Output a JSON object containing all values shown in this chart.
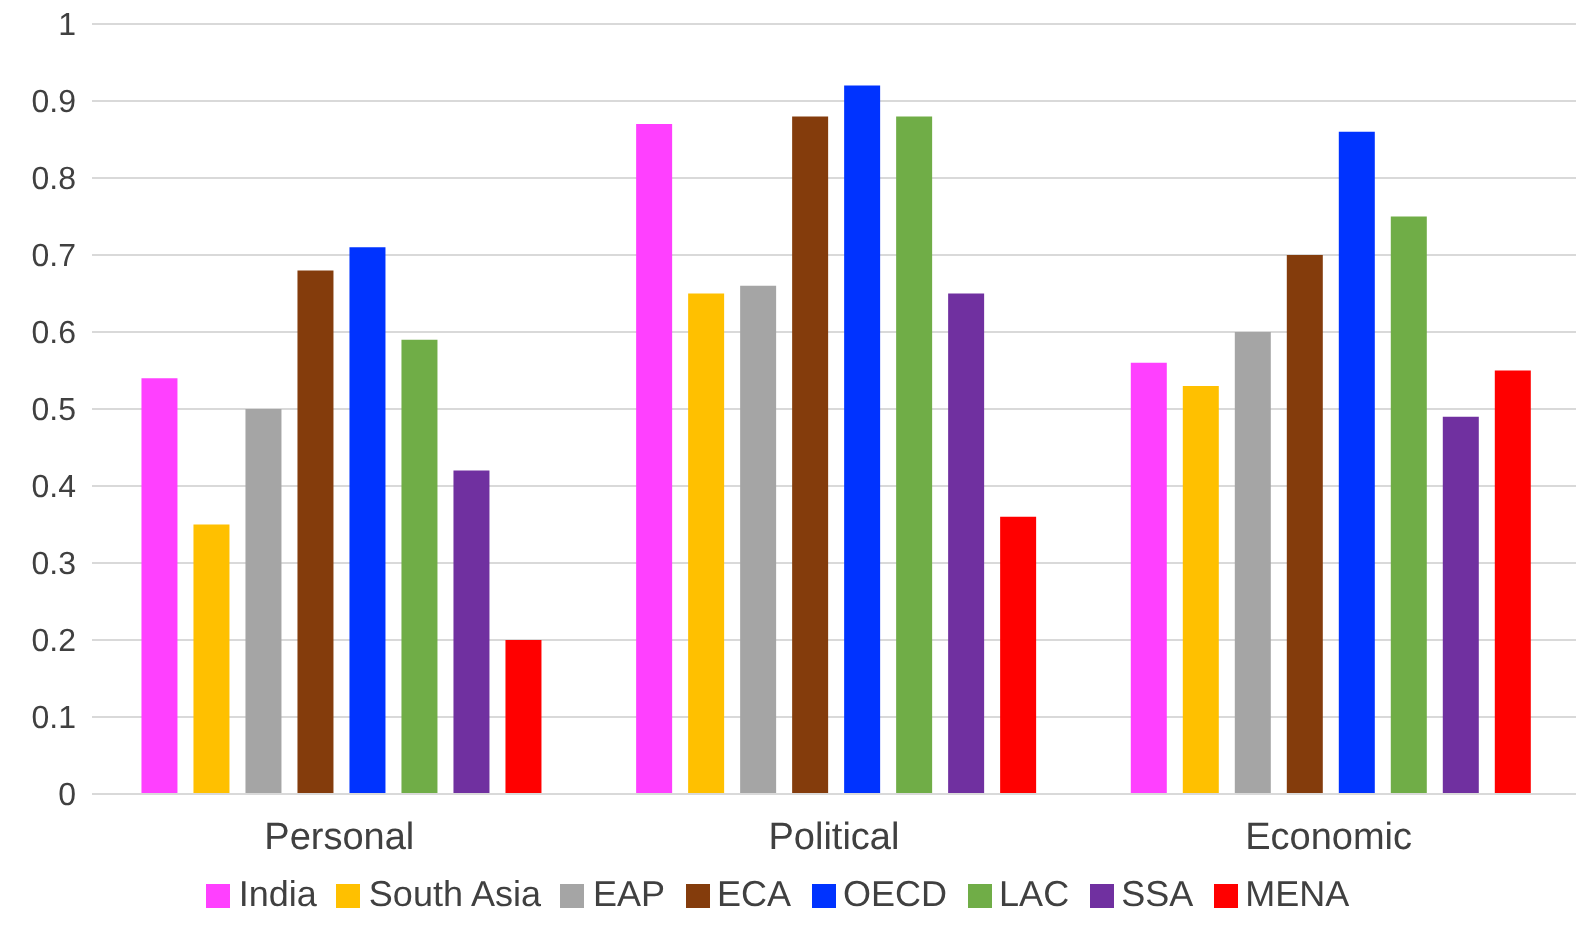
{
  "chart_data": {
    "type": "bar",
    "categories": [
      "Personal",
      "Political",
      "Economic"
    ],
    "series": [
      {
        "name": "India",
        "color": "#ff40ff",
        "values": [
          0.54,
          0.87,
          0.56
        ]
      },
      {
        "name": "South Asia",
        "color": "#ffc000",
        "values": [
          0.35,
          0.65,
          0.53
        ]
      },
      {
        "name": "EAP",
        "color": "#a5a5a5",
        "values": [
          0.5,
          0.66,
          0.6
        ]
      },
      {
        "name": "ECA",
        "color": "#843c0c",
        "values": [
          0.68,
          0.88,
          0.7
        ]
      },
      {
        "name": "OECD",
        "color": "#0033ff",
        "values": [
          0.71,
          0.92,
          0.86
        ]
      },
      {
        "name": "LAC",
        "color": "#70ad47",
        "values": [
          0.59,
          0.88,
          0.75
        ]
      },
      {
        "name": "SSA",
        "color": "#7030a0",
        "values": [
          0.42,
          0.65,
          0.49
        ]
      },
      {
        "name": "MENA",
        "color": "#ff0000",
        "values": [
          0.2,
          0.36,
          0.55
        ]
      }
    ],
    "ylim": [
      0,
      1
    ],
    "yticks": [
      0,
      0.1,
      0.2,
      0.3,
      0.4,
      0.5,
      0.6,
      0.7,
      0.8,
      0.9,
      1
    ],
    "grid": "y",
    "legend": "bottom"
  }
}
